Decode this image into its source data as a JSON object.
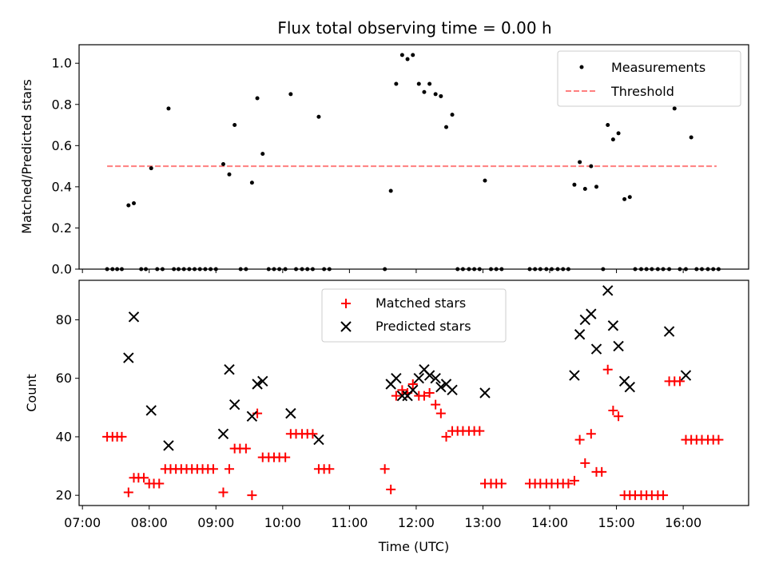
{
  "colors": {
    "measurement": "#000000",
    "threshold": "#ff7f7f",
    "matched": "#ff0000",
    "predicted": "#000000"
  },
  "chart_data": [
    {
      "type": "scatter",
      "title": "Flux total observing time = 0.00 h",
      "xlabel": "",
      "ylabel": "Matched/Predicted stars",
      "xlim": [
        6.95,
        16.98
      ],
      "ylim": [
        0,
        1.09
      ],
      "yticks": [
        0.0,
        0.2,
        0.4,
        0.6,
        0.8,
        1.0
      ],
      "ytick_labels": [
        "0.0",
        "0.2",
        "0.4",
        "0.6",
        "0.8",
        "1.0"
      ],
      "legend": [
        "Measurements",
        "Threshold"
      ],
      "threshold": {
        "value": 0.5,
        "x_start": 7.37,
        "x_end": 16.5
      },
      "series": [
        {
          "name": "Measurements",
          "x": [
            7.37,
            7.45,
            7.52,
            7.59,
            7.69,
            7.77,
            7.88,
            7.95,
            8.03,
            8.12,
            8.2,
            8.29,
            8.37,
            8.44,
            8.52,
            8.6,
            8.68,
            8.76,
            8.84,
            8.92,
            9.0,
            9.11,
            9.2,
            9.28,
            9.37,
            9.45,
            9.54,
            9.62,
            9.7,
            9.79,
            9.87,
            9.95,
            10.04,
            10.12,
            10.2,
            10.29,
            10.37,
            10.45,
            10.54,
            10.62,
            10.7,
            11.53,
            11.62,
            11.7,
            11.79,
            11.87,
            11.95,
            12.04,
            12.12,
            12.2,
            12.29,
            12.37,
            12.45,
            12.54,
            12.62,
            12.7,
            12.79,
            12.87,
            12.95,
            13.03,
            13.12,
            13.2,
            13.28,
            13.7,
            13.78,
            13.86,
            13.95,
            14.03,
            14.12,
            14.2,
            14.28,
            14.37,
            14.45,
            14.53,
            14.62,
            14.7,
            14.8,
            14.87,
            14.95,
            15.03,
            15.12,
            15.2,
            15.28,
            15.37,
            15.45,
            15.53,
            15.62,
            15.7,
            15.79,
            15.87,
            15.95,
            16.04,
            16.12,
            16.2,
            16.28,
            16.37,
            16.45,
            16.53
          ],
          "y": [
            0.0,
            0.0,
            0.0,
            0.0,
            0.31,
            0.32,
            0.0,
            0.0,
            0.49,
            0.0,
            0.0,
            0.78,
            0.0,
            0.0,
            0.0,
            0.0,
            0.0,
            0.0,
            0.0,
            0.0,
            0.0,
            0.51,
            0.46,
            0.7,
            0.0,
            0.0,
            0.42,
            0.83,
            0.56,
            0.0,
            0.0,
            0.0,
            0.0,
            0.85,
            0.0,
            0.0,
            0.0,
            0.0,
            0.74,
            0.0,
            0.0,
            0.0,
            0.38,
            0.9,
            1.04,
            1.02,
            1.04,
            0.9,
            0.86,
            0.9,
            0.85,
            0.84,
            0.69,
            0.75,
            0.0,
            0.0,
            0.0,
            0.0,
            0.0,
            0.43,
            0.0,
            0.0,
            0.0,
            0.0,
            0.0,
            0.0,
            0.0,
            0.0,
            0.0,
            0.0,
            0.0,
            0.41,
            0.52,
            0.39,
            0.5,
            0.4,
            0.0,
            0.7,
            0.63,
            0.66,
            0.34,
            0.35,
            0.0,
            0.0,
            0.0,
            0.0,
            0.0,
            0.0,
            0.0,
            0.78,
            0.0,
            0.0,
            0.64,
            0.0,
            0.0,
            0.0,
            0.0,
            0.0
          ]
        }
      ]
    },
    {
      "type": "scatter",
      "title": "",
      "xlabel": "Time (UTC)",
      "ylabel": "Count",
      "xlim": [
        6.95,
        16.98
      ],
      "ylim": [
        16.5,
        93.5
      ],
      "yticks": [
        20,
        40,
        60,
        80
      ],
      "ytick_labels": [
        "20",
        "40",
        "60",
        "80"
      ],
      "xticks": [
        7,
        8,
        9,
        10,
        11,
        12,
        13,
        14,
        15,
        16
      ],
      "xtick_labels": [
        "07:00",
        "08:00",
        "09:00",
        "10:00",
        "11:00",
        "12:00",
        "13:00",
        "14:00",
        "15:00",
        "16:00"
      ],
      "legend": [
        "Matched stars",
        "Predicted stars"
      ],
      "series": [
        {
          "name": "Matched stars",
          "x": [
            7.37,
            7.45,
            7.52,
            7.59,
            7.69,
            7.77,
            7.84,
            7.92,
            8.0,
            8.07,
            8.15,
            8.24,
            8.32,
            8.4,
            8.48,
            8.56,
            8.64,
            8.72,
            8.8,
            8.88,
            8.96,
            9.11,
            9.2,
            9.28,
            9.36,
            9.45,
            9.54,
            9.62,
            9.7,
            9.79,
            9.87,
            9.95,
            10.04,
            10.12,
            10.2,
            10.29,
            10.37,
            10.45,
            10.54,
            10.62,
            10.7,
            11.53,
            11.62,
            11.7,
            11.79,
            11.87,
            11.95,
            12.04,
            12.12,
            12.2,
            12.29,
            12.37,
            12.45,
            12.54,
            12.62,
            12.7,
            12.79,
            12.87,
            12.95,
            13.03,
            13.12,
            13.2,
            13.28,
            13.7,
            13.78,
            13.86,
            13.95,
            14.03,
            14.12,
            14.2,
            14.28,
            14.37,
            14.45,
            14.53,
            14.62,
            14.7,
            14.78,
            14.87,
            14.95,
            15.03,
            15.12,
            15.2,
            15.28,
            15.37,
            15.45,
            15.53,
            15.62,
            15.7,
            15.79,
            15.87,
            15.95,
            16.04,
            16.12,
            16.2,
            16.28,
            16.37,
            16.45,
            16.53
          ],
          "y": [
            40,
            40,
            40,
            40,
            21,
            26,
            26,
            26,
            24,
            24,
            24,
            29,
            29,
            29,
            29,
            29,
            29,
            29,
            29,
            29,
            29,
            21,
            29,
            36,
            36,
            36,
            20,
            48,
            33,
            33,
            33,
            33,
            33,
            41,
            41,
            41,
            41,
            41,
            29,
            29,
            29,
            29,
            22,
            54,
            56,
            55,
            58,
            54,
            54,
            55,
            51,
            48,
            40,
            42,
            42,
            42,
            42,
            42,
            42,
            24,
            24,
            24,
            24,
            24,
            24,
            24,
            24,
            24,
            24,
            24,
            24,
            25,
            39,
            31,
            41,
            28,
            28,
            63,
            49,
            47,
            20,
            20,
            20,
            20,
            20,
            20,
            20,
            20,
            59,
            59,
            59,
            39,
            39,
            39,
            39,
            39,
            39,
            39
          ]
        },
        {
          "name": "Predicted stars",
          "x": [
            7.69,
            7.77,
            8.03,
            8.29,
            9.11,
            9.2,
            9.28,
            9.54,
            9.62,
            9.7,
            10.12,
            10.54,
            11.62,
            11.7,
            11.79,
            11.87,
            11.95,
            12.04,
            12.12,
            12.2,
            12.29,
            12.37,
            12.45,
            12.54,
            13.03,
            14.37,
            14.45,
            14.53,
            14.62,
            14.7,
            14.87,
            14.95,
            15.03,
            15.12,
            15.2,
            15.79,
            16.04
          ],
          "y": [
            67,
            81,
            49,
            37,
            41,
            63,
            51,
            47,
            58,
            59,
            48,
            39,
            58,
            60,
            54,
            54,
            56,
            60,
            63,
            61,
            60,
            57,
            58,
            56,
            55,
            61,
            75,
            80,
            82,
            70,
            90,
            78,
            71,
            59,
            57,
            76,
            61
          ]
        }
      ]
    }
  ]
}
